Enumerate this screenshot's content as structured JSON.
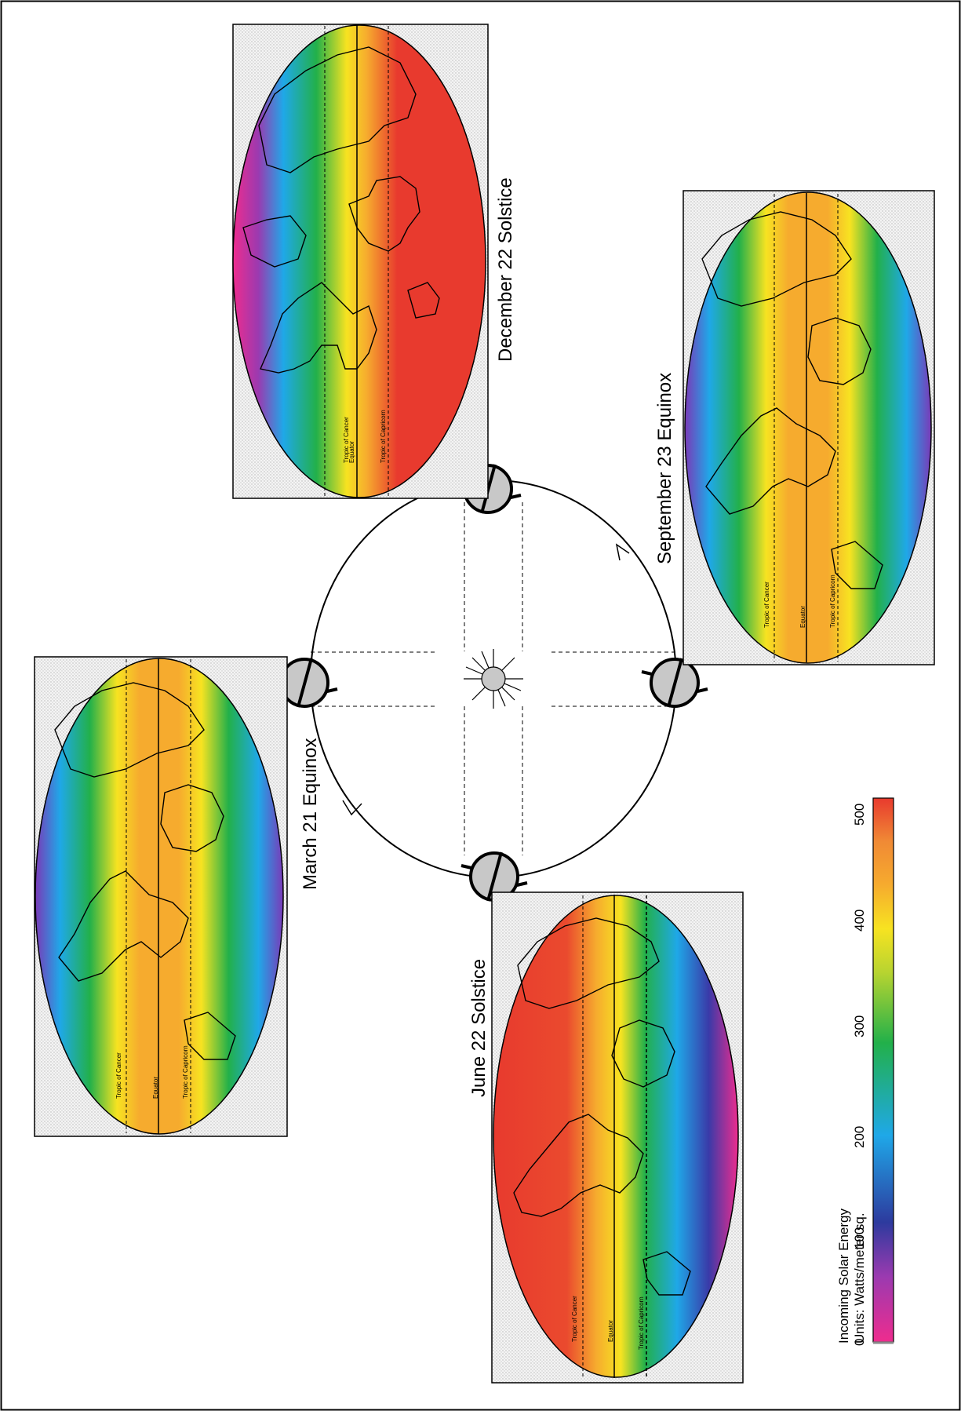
{
  "maps": [
    {
      "id": "december",
      "label": "December 22 Solstice",
      "band_colors": [
        "#ee2c8e",
        "#7a3ab8",
        "#1fa8e8",
        "#22b04a",
        "#f7e321",
        "#f6ab2e",
        "#f08a35",
        "#e83a2e",
        "#e83a2e"
      ]
    },
    {
      "id": "march",
      "label": "March 21 Equinox",
      "band_colors": [
        "#6a3ab0",
        "#1fa8e8",
        "#22b04a",
        "#f7e321",
        "#f6ab2e",
        "#f6ab2e",
        "#f7e321",
        "#22b04a",
        "#1fa8e8",
        "#7a3ab8"
      ]
    },
    {
      "id": "june",
      "label": "June 22 Solstice",
      "band_colors": [
        "#e83a2e",
        "#e83a2e",
        "#f08a35",
        "#f6ab2e",
        "#f7e321",
        "#22b04a",
        "#1fa8e8",
        "#7a3ab8",
        "#ee2c8e"
      ]
    },
    {
      "id": "september",
      "label": "September 23 Equinox",
      "band_colors": [
        "#1fa8e8",
        "#22b04a",
        "#f7e321",
        "#f6ab2e",
        "#f6ab2e",
        "#f7e321",
        "#22b04a",
        "#1fa8e8",
        "#7a3ab8"
      ]
    }
  ],
  "map_lines": {
    "tropic_cancer": "Tropic of Cancer",
    "equator": "Equator",
    "tropic_capricorn": "Tropic of Capricorn"
  },
  "legend": {
    "title": "Incoming Solar Energy",
    "units": "Units:  Watts/meter sq.",
    "ticks": [
      "0",
      "100",
      "200",
      "300",
      "400",
      "500"
    ],
    "gradient": [
      "#ee2c8e",
      "#7a3ab8",
      "#2d3a9e",
      "#1fa8e8",
      "#22b04a",
      "#b8d430",
      "#f7e321",
      "#f6ab2e",
      "#f08a35",
      "#e83a2e"
    ]
  }
}
